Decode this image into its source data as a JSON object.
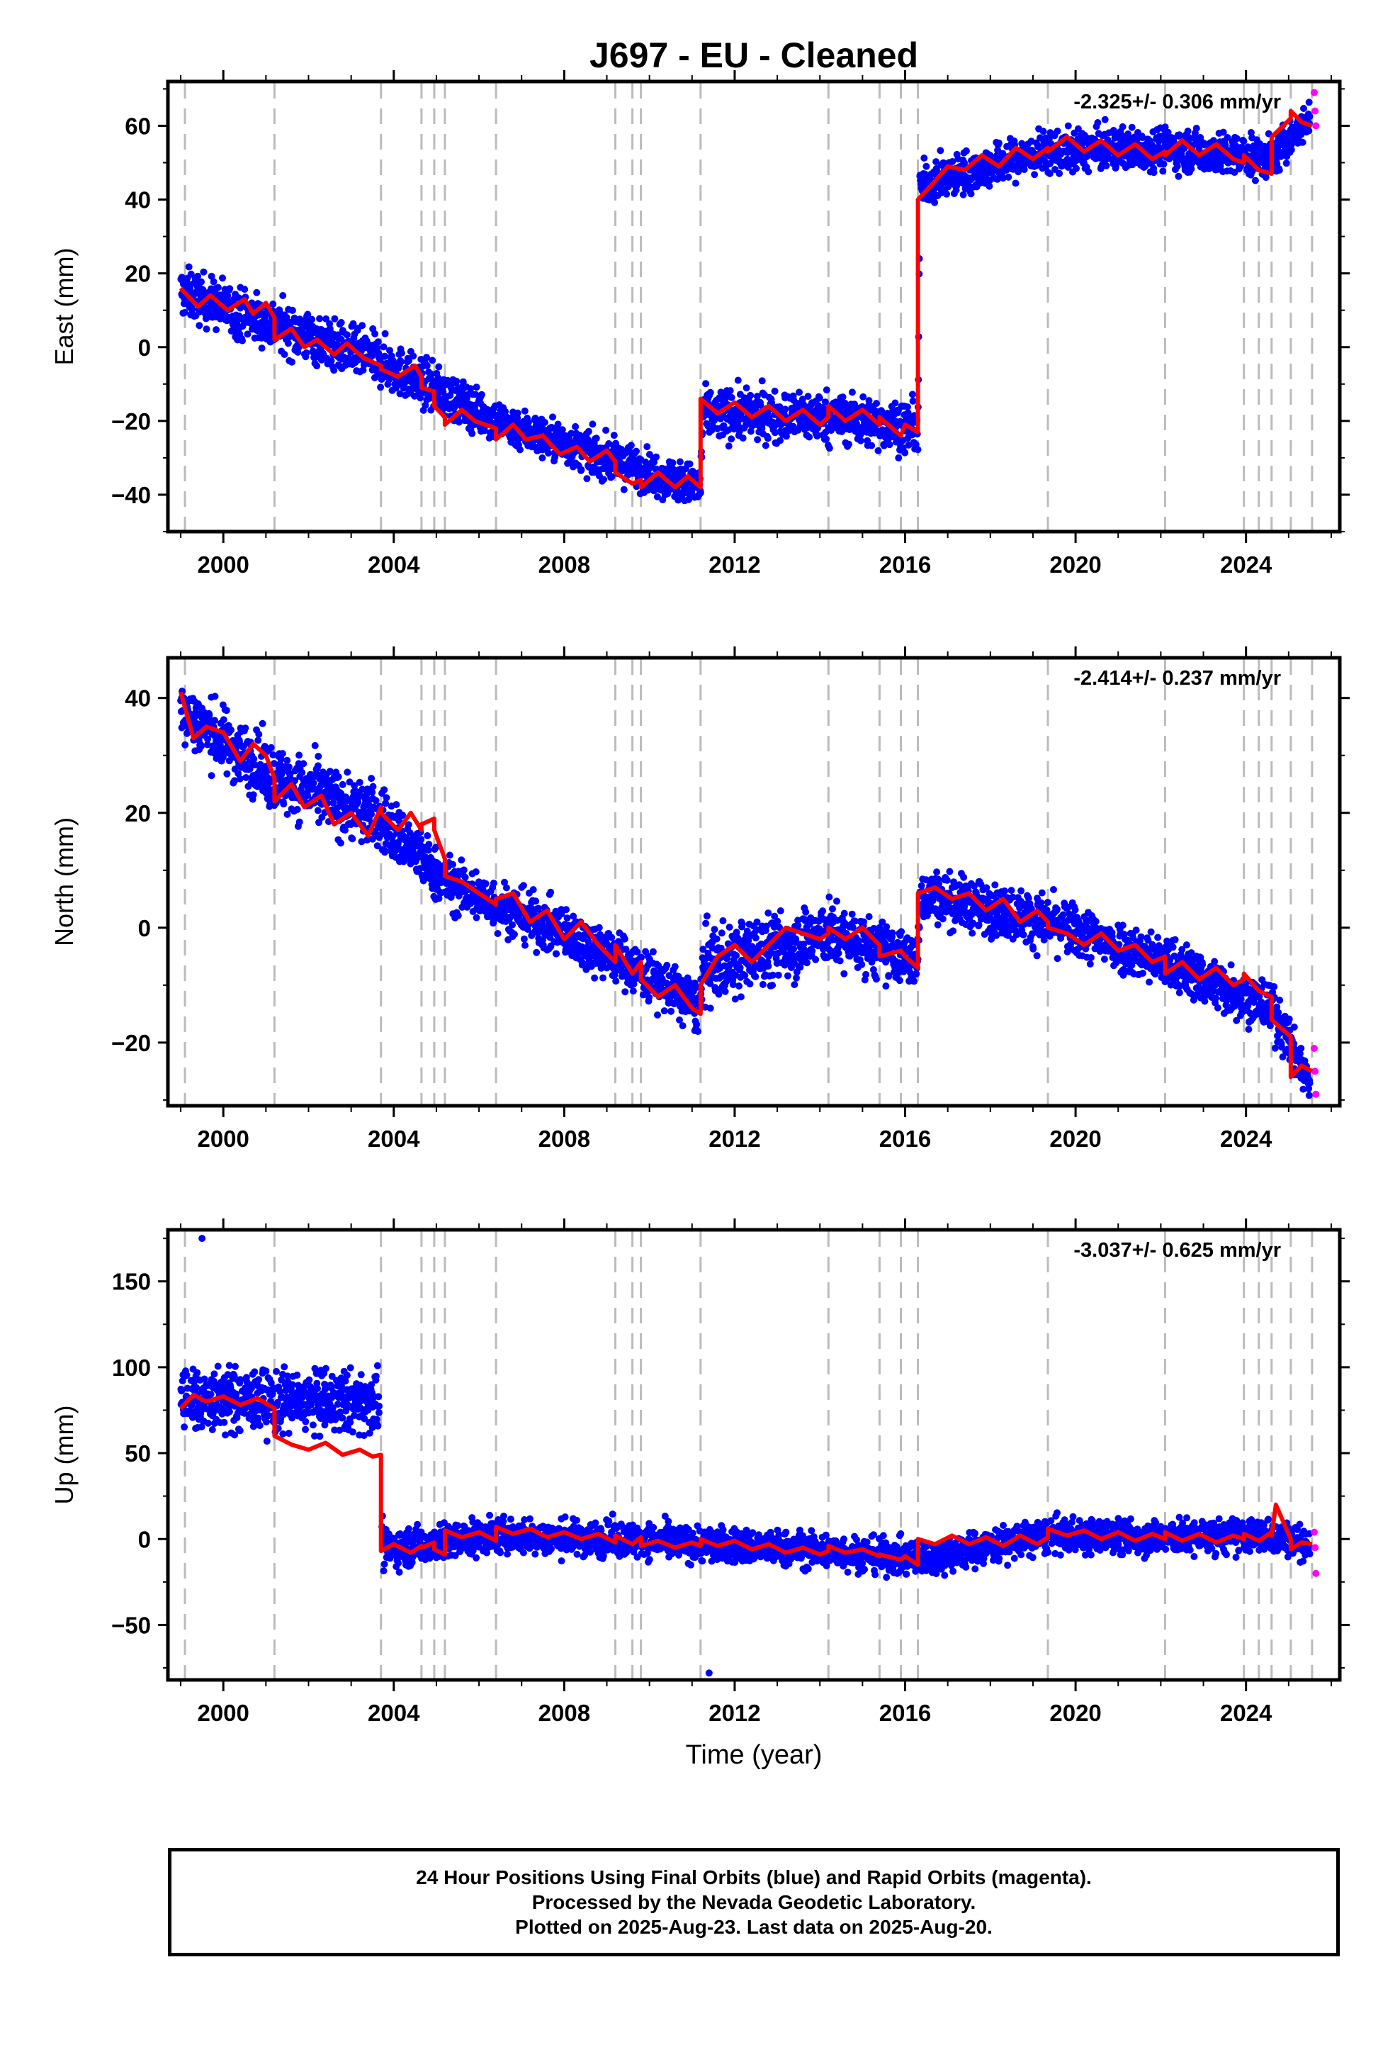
{
  "title": "J697  - EU - Cleaned",
  "colors": {
    "final_orbits": "#0000ff",
    "rapid_orbits": "#ff00ff",
    "model": "#ff0000",
    "offset_lines": "#bbbbbb",
    "frame": "#000000"
  },
  "x_axis": {
    "label": "Time (year)",
    "range": [
      1998.7,
      2026.2
    ],
    "ticks": [
      2000,
      2004,
      2008,
      2012,
      2016,
      2020,
      2024
    ],
    "tick_labels": [
      "2000",
      "2004",
      "2008",
      "2012",
      "2016",
      "2020",
      "2024"
    ]
  },
  "offset_epochs": [
    1999.1,
    2001.2,
    2003.7,
    2004.65,
    2004.95,
    2005.2,
    2006.4,
    2009.2,
    2009.6,
    2009.8,
    2011.2,
    2014.2,
    2015.4,
    2015.9,
    2016.3,
    2019.35,
    2022.1,
    2023.95,
    2024.3,
    2024.6,
    2025.05,
    2025.55
  ],
  "chart_data": [
    {
      "type": "scatter",
      "component": "East",
      "ylabel": "East (mm)",
      "ylim": [
        -50,
        72
      ],
      "yticks": [
        -40,
        -20,
        0,
        20,
        40,
        60
      ],
      "ytick_labels": [
        "−40",
        "−20",
        "0",
        "20",
        "40",
        "60"
      ],
      "rate": "-2.325+/- 0.306 mm/yr",
      "model": {
        "x": [
          1999.0,
          1999.4,
          1999.7,
          2000.1,
          2000.5,
          2000.7,
          2001.0,
          2001.2,
          2001.2,
          2001.6,
          2001.9,
          2002.2,
          2002.6,
          2002.9,
          2003.3,
          2003.7,
          2003.7,
          2004.1,
          2004.5,
          2004.65,
          2004.65,
          2004.95,
          2004.95,
          2005.2,
          2005.2,
          2005.6,
          2005.9,
          2006.4,
          2006.4,
          2006.8,
          2007.1,
          2007.5,
          2007.9,
          2008.3,
          2008.6,
          2009.0,
          2009.2,
          2009.2,
          2009.6,
          2009.8,
          2009.8,
          2010.2,
          2010.6,
          2010.9,
          2011.2,
          2011.2,
          2011.6,
          2012.0,
          2012.4,
          2012.8,
          2013.2,
          2013.6,
          2014.0,
          2014.2,
          2014.2,
          2014.6,
          2015.0,
          2015.4,
          2015.4,
          2015.9,
          2016.0,
          2016.3,
          2016.3,
          2016.7,
          2017.0,
          2017.4,
          2017.8,
          2018.2,
          2018.6,
          2019.0,
          2019.35,
          2019.35,
          2019.8,
          2020.2,
          2020.6,
          2021.0,
          2021.4,
          2021.8,
          2022.1,
          2022.1,
          2022.5,
          2022.9,
          2023.3,
          2023.7,
          2023.95,
          2023.95,
          2024.3,
          2024.6,
          2024.6,
          2025.05,
          2025.05,
          2025.3,
          2025.55
        ],
        "y": [
          16,
          11,
          14,
          10,
          13,
          9,
          12,
          8,
          2,
          5,
          0,
          2,
          -2,
          1,
          -3,
          -5,
          -6,
          -8,
          -5,
          -8,
          -11,
          -12,
          -16,
          -19,
          -21,
          -17,
          -20,
          -22,
          -25,
          -21,
          -25,
          -24,
          -29,
          -27,
          -31,
          -28,
          -31,
          -34,
          -37,
          -36,
          -38,
          -34,
          -38,
          -35,
          -38,
          -14,
          -18,
          -15,
          -19,
          -16,
          -20,
          -17,
          -21,
          -19,
          -16,
          -20,
          -17,
          -21,
          -19,
          -24,
          -21,
          -23,
          40,
          45,
          49,
          48,
          52,
          49,
          54,
          51,
          54,
          53,
          57,
          53,
          56,
          52,
          55,
          51,
          53,
          52,
          56,
          52,
          55,
          51,
          50,
          52,
          48,
          47,
          57,
          62,
          64,
          61,
          60
        ]
      },
      "scatter_band": {
        "x": [
          1999.0,
          2001.2,
          2003.7,
          2006.4,
          2009.2,
          2011.2,
          2011.25,
          2014.2,
          2016.3,
          2016.35,
          2019.35,
          2022.1,
          2024.6,
          2025.5
        ],
        "center": [
          15,
          6,
          -4,
          -20,
          -31,
          -38,
          -18,
          -19,
          -22,
          44,
          53,
          54,
          51,
          62
        ],
        "spread": [
          6,
          6,
          6,
          5,
          5,
          5,
          6,
          6,
          6,
          5,
          5,
          5,
          5,
          4
        ]
      },
      "rapid_points": {
        "x": [
          2025.6,
          2025.62,
          2025.64
        ],
        "y": [
          69,
          64,
          60
        ]
      }
    },
    {
      "type": "scatter",
      "component": "North",
      "ylabel": "North (mm)",
      "ylim": [
        -31,
        47
      ],
      "yticks": [
        -20,
        0,
        20,
        40
      ],
      "ytick_labels": [
        "−20",
        "0",
        "20",
        "40"
      ],
      "rate": "-2.414+/- 0.237 mm/yr",
      "model": {
        "x": [
          1999.0,
          1999.3,
          1999.6,
          2000.0,
          2000.4,
          2000.7,
          2001.0,
          2001.2,
          2001.2,
          2001.6,
          2001.9,
          2002.3,
          2002.6,
          2003.0,
          2003.4,
          2003.7,
          2003.7,
          2004.1,
          2004.4,
          2004.65,
          2004.65,
          2004.95,
          2004.95,
          2005.2,
          2005.2,
          2005.6,
          2006.0,
          2006.4,
          2006.4,
          2006.8,
          2007.2,
          2007.6,
          2008.0,
          2008.4,
          2008.8,
          2009.2,
          2009.2,
          2009.6,
          2009.8,
          2009.8,
          2010.2,
          2010.6,
          2011.0,
          2011.2,
          2011.2,
          2011.6,
          2012.0,
          2012.4,
          2012.8,
          2013.2,
          2013.6,
          2014.0,
          2014.2,
          2014.2,
          2014.6,
          2015.0,
          2015.4,
          2015.4,
          2015.9,
          2016.0,
          2016.3,
          2016.3,
          2016.7,
          2017.1,
          2017.5,
          2017.9,
          2018.3,
          2018.7,
          2019.1,
          2019.35,
          2019.35,
          2019.8,
          2020.2,
          2020.6,
          2021.0,
          2021.4,
          2021.8,
          2022.1,
          2022.1,
          2022.5,
          2022.9,
          2023.3,
          2023.7,
          2023.95,
          2023.95,
          2024.3,
          2024.6,
          2024.6,
          2025.05,
          2025.05,
          2025.3,
          2025.55
        ],
        "y": [
          41,
          33,
          35,
          34,
          29,
          32,
          30,
          26,
          22,
          25,
          21,
          23,
          18,
          20,
          16,
          21,
          20,
          17,
          20,
          17,
          18,
          19,
          17,
          12,
          9,
          8,
          6,
          4,
          5,
          6,
          1,
          3,
          -2,
          1,
          -3,
          -6,
          -3,
          -8,
          -6,
          -9,
          -12,
          -10,
          -14,
          -15,
          -10,
          -5,
          -3,
          -6,
          -3,
          0,
          -1,
          -2,
          -1,
          0,
          -2,
          0,
          -3,
          -5,
          -4,
          -5,
          -7,
          6,
          7,
          5,
          6,
          3,
          5,
          1,
          3,
          1,
          0,
          -1,
          -3,
          -1,
          -4,
          -3,
          -6,
          -5,
          -8,
          -6,
          -9,
          -7,
          -10,
          -9,
          -8,
          -11,
          -12,
          -16,
          -19,
          -26,
          -24,
          -25
        ]
      },
      "scatter_band": {
        "x": [
          1999.0,
          2001.2,
          2003.7,
          2005.2,
          2009.2,
          2011.2,
          2011.25,
          2014.2,
          2016.3,
          2016.35,
          2019.35,
          2022.1,
          2024.6,
          2025.5
        ],
        "center": [
          38,
          26,
          19,
          8,
          -5,
          -14,
          -7,
          -1,
          -6,
          6,
          1,
          -6,
          -14,
          -27
        ],
        "spread": [
          5,
          5,
          5,
          4,
          4,
          4,
          6,
          5,
          4,
          4,
          4,
          4,
          4,
          3
        ]
      },
      "rapid_points": {
        "x": [
          2025.6,
          2025.62,
          2025.64
        ],
        "y": [
          -21,
          -25,
          -29
        ]
      }
    },
    {
      "type": "scatter",
      "component": "Up",
      "ylabel": "Up (mm)",
      "ylim": [
        -82,
        180
      ],
      "yticks": [
        -50,
        0,
        50,
        100,
        150
      ],
      "ytick_labels": [
        "−50",
        "0",
        "50",
        "100",
        "150"
      ],
      "rate": "-3.037+/- 0.625 mm/yr",
      "model": {
        "x": [
          1999.0,
          1999.3,
          1999.6,
          2000.0,
          2000.4,
          2000.8,
          2001.2,
          2001.2,
          2001.6,
          2002.0,
          2002.4,
          2002.8,
          2003.2,
          2003.5,
          2003.7,
          2003.7,
          2004.0,
          2004.4,
          2004.65,
          2004.65,
          2004.95,
          2004.95,
          2005.2,
          2005.2,
          2005.6,
          2006.0,
          2006.4,
          2006.4,
          2006.8,
          2007.2,
          2007.6,
          2008.0,
          2008.4,
          2008.8,
          2009.2,
          2009.2,
          2009.6,
          2009.8,
          2009.8,
          2010.2,
          2010.6,
          2011.0,
          2011.2,
          2011.2,
          2011.6,
          2012.0,
          2012.4,
          2012.8,
          2013.2,
          2013.6,
          2014.0,
          2014.2,
          2014.2,
          2014.6,
          2015.0,
          2015.4,
          2015.4,
          2015.9,
          2016.0,
          2016.3,
          2016.3,
          2016.7,
          2017.1,
          2017.5,
          2017.9,
          2018.3,
          2018.7,
          2019.1,
          2019.35,
          2019.35,
          2019.8,
          2020.2,
          2020.6,
          2021.0,
          2021.4,
          2021.8,
          2022.1,
          2022.1,
          2022.5,
          2022.9,
          2023.3,
          2023.7,
          2023.95,
          2023.95,
          2024.3,
          2024.6,
          2024.6,
          2024.7,
          2025.05,
          2025.05,
          2025.3,
          2025.55
        ],
        "y": [
          76,
          84,
          80,
          83,
          78,
          82,
          76,
          60,
          55,
          52,
          56,
          49,
          52,
          48,
          49,
          -7,
          -3,
          -8,
          -4,
          -5,
          -2,
          -6,
          -9,
          5,
          1,
          4,
          -1,
          7,
          3,
          6,
          1,
          4,
          0,
          3,
          -2,
          2,
          -3,
          1,
          -4,
          -1,
          -5,
          -2,
          -4,
          0,
          -4,
          -1,
          -6,
          -3,
          -8,
          -5,
          -9,
          -7,
          -4,
          -8,
          -6,
          -10,
          -9,
          -12,
          -10,
          -15,
          0,
          -3,
          2,
          -3,
          1,
          -4,
          2,
          -3,
          1,
          6,
          2,
          5,
          0,
          4,
          -1,
          3,
          0,
          4,
          -1,
          3,
          -2,
          2,
          0,
          3,
          -1,
          4,
          2,
          20,
          0,
          -6,
          -2,
          -3
        ]
      },
      "scatter_band": {
        "x": [
          1999.0,
          2001.2,
          2003.65,
          2003.75,
          2006.4,
          2009.2,
          2011.2,
          2014.2,
          2016.3,
          2019.35,
          2022.1,
          2024.6,
          2025.5
        ],
        "center": [
          82,
          80,
          80,
          -6,
          2,
          0,
          -3,
          -7,
          -12,
          2,
          1,
          2,
          -3
        ],
        "spread": [
          17,
          16,
          16,
          10,
          9,
          9,
          9,
          9,
          9,
          9,
          9,
          9,
          8
        ]
      },
      "outliers": {
        "x": [
          1999.5,
          2011.4
        ],
        "y": [
          175,
          -78
        ]
      },
      "rapid_points": {
        "x": [
          2025.6,
          2025.62,
          2025.64
        ],
        "y": [
          4,
          -5,
          -20
        ]
      }
    }
  ],
  "footer": {
    "line1": "24 Hour Positions Using Final Orbits (blue) and Rapid Orbits (magenta).",
    "line2": "Processed by the Nevada Geodetic Laboratory.",
    "line3": "Plotted on 2025-Aug-23. Last data on 2025-Aug-20."
  }
}
